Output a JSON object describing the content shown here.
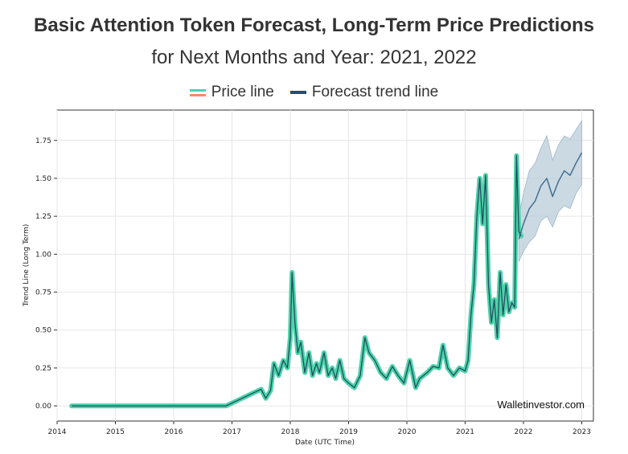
{
  "title": {
    "bold1": "Basic Attention Token",
    "normal1": " Forecast, ",
    "bold2": "Long-Term",
    "normal2": " Price Predictions",
    "line2": "for Next Months and Year: 2021, 2022"
  },
  "legend": {
    "price_label": "Price line",
    "forecast_label": "Forecast trend line"
  },
  "watermark": "Walletinvestor.com",
  "colors": {
    "price_fill": "#4cd3a9",
    "price_line": "#1f4e5f",
    "price_legend_accent": "#f28b6b",
    "forecast_line": "#3a6a8c",
    "forecast_band": "#b9ccd9"
  },
  "chart_data": {
    "type": "line",
    "xlabel": "Date (UTC Time)",
    "ylabel": "Trend Line (Long Term)",
    "xlim": [
      2014.0,
      2023.2
    ],
    "ylim": [
      -0.1,
      1.95
    ],
    "grid": true,
    "legend_position": "top-center",
    "x_ticks": [
      "2014",
      "2015",
      "2016",
      "2017",
      "2018",
      "2019",
      "2020",
      "2021",
      "2022",
      "2023"
    ],
    "y_ticks": [
      "0.00",
      "0.25",
      "0.50",
      "0.75",
      "1.00",
      "1.25",
      "1.50",
      "1.75"
    ],
    "series": [
      {
        "name": "Price line",
        "x": [
          2014.25,
          2016.9,
          2017.5,
          2017.58,
          2017.66,
          2017.72,
          2017.8,
          2017.88,
          2017.95,
          2018.0,
          2018.03,
          2018.08,
          2018.13,
          2018.18,
          2018.25,
          2018.32,
          2018.38,
          2018.45,
          2018.5,
          2018.58,
          2018.65,
          2018.72,
          2018.78,
          2018.85,
          2018.92,
          2019.0,
          2019.1,
          2019.2,
          2019.28,
          2019.35,
          2019.45,
          2019.55,
          2019.65,
          2019.75,
          2019.85,
          2019.95,
          2020.05,
          2020.15,
          2020.22,
          2020.35,
          2020.45,
          2020.55,
          2020.62,
          2020.7,
          2020.8,
          2020.9,
          2021.0,
          2021.05,
          2021.1,
          2021.15,
          2021.2,
          2021.25,
          2021.3,
          2021.35,
          2021.4,
          2021.45,
          2021.5,
          2021.55,
          2021.6,
          2021.65,
          2021.7,
          2021.75,
          2021.8,
          2021.85,
          2021.88,
          2021.92,
          2021.96
        ],
        "values": [
          0.0,
          0.0,
          0.11,
          0.05,
          0.1,
          0.28,
          0.2,
          0.3,
          0.25,
          0.45,
          0.88,
          0.55,
          0.35,
          0.42,
          0.22,
          0.35,
          0.2,
          0.28,
          0.22,
          0.35,
          0.2,
          0.25,
          0.18,
          0.3,
          0.18,
          0.15,
          0.12,
          0.2,
          0.45,
          0.35,
          0.3,
          0.22,
          0.18,
          0.26,
          0.2,
          0.15,
          0.3,
          0.12,
          0.18,
          0.22,
          0.26,
          0.25,
          0.4,
          0.25,
          0.2,
          0.25,
          0.23,
          0.3,
          0.6,
          0.8,
          1.25,
          1.5,
          1.2,
          1.52,
          0.8,
          0.55,
          0.7,
          0.45,
          0.88,
          0.6,
          0.8,
          0.62,
          0.68,
          0.65,
          1.65,
          1.15,
          1.12
        ]
      },
      {
        "name": "Forecast trend line",
        "x": [
          2021.92,
          2022.0,
          2022.1,
          2022.2,
          2022.3,
          2022.4,
          2022.5,
          2022.6,
          2022.7,
          2022.8,
          2022.9,
          2023.0
        ],
        "values": [
          1.1,
          1.2,
          1.3,
          1.35,
          1.45,
          1.5,
          1.38,
          1.48,
          1.55,
          1.52,
          1.6,
          1.67
        ],
        "band_upper": [
          1.25,
          1.4,
          1.55,
          1.6,
          1.7,
          1.78,
          1.62,
          1.72,
          1.78,
          1.76,
          1.82,
          1.88
        ],
        "band_lower": [
          0.95,
          1.02,
          1.08,
          1.12,
          1.22,
          1.25,
          1.18,
          1.28,
          1.32,
          1.3,
          1.4,
          1.46
        ]
      }
    ]
  }
}
